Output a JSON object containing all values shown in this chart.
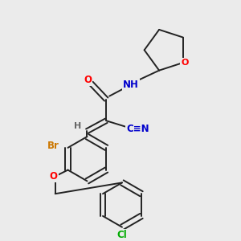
{
  "background_color": "#ebebeb",
  "atom_colors": {
    "O": "#ff0000",
    "N": "#0000cc",
    "Br": "#cc7700",
    "Cl": "#00aa00",
    "C": "#222222",
    "H": "#666666"
  },
  "bond_color": "#222222",
  "bond_width": 1.4,
  "figsize": [
    3.0,
    3.0
  ],
  "dpi": 100
}
